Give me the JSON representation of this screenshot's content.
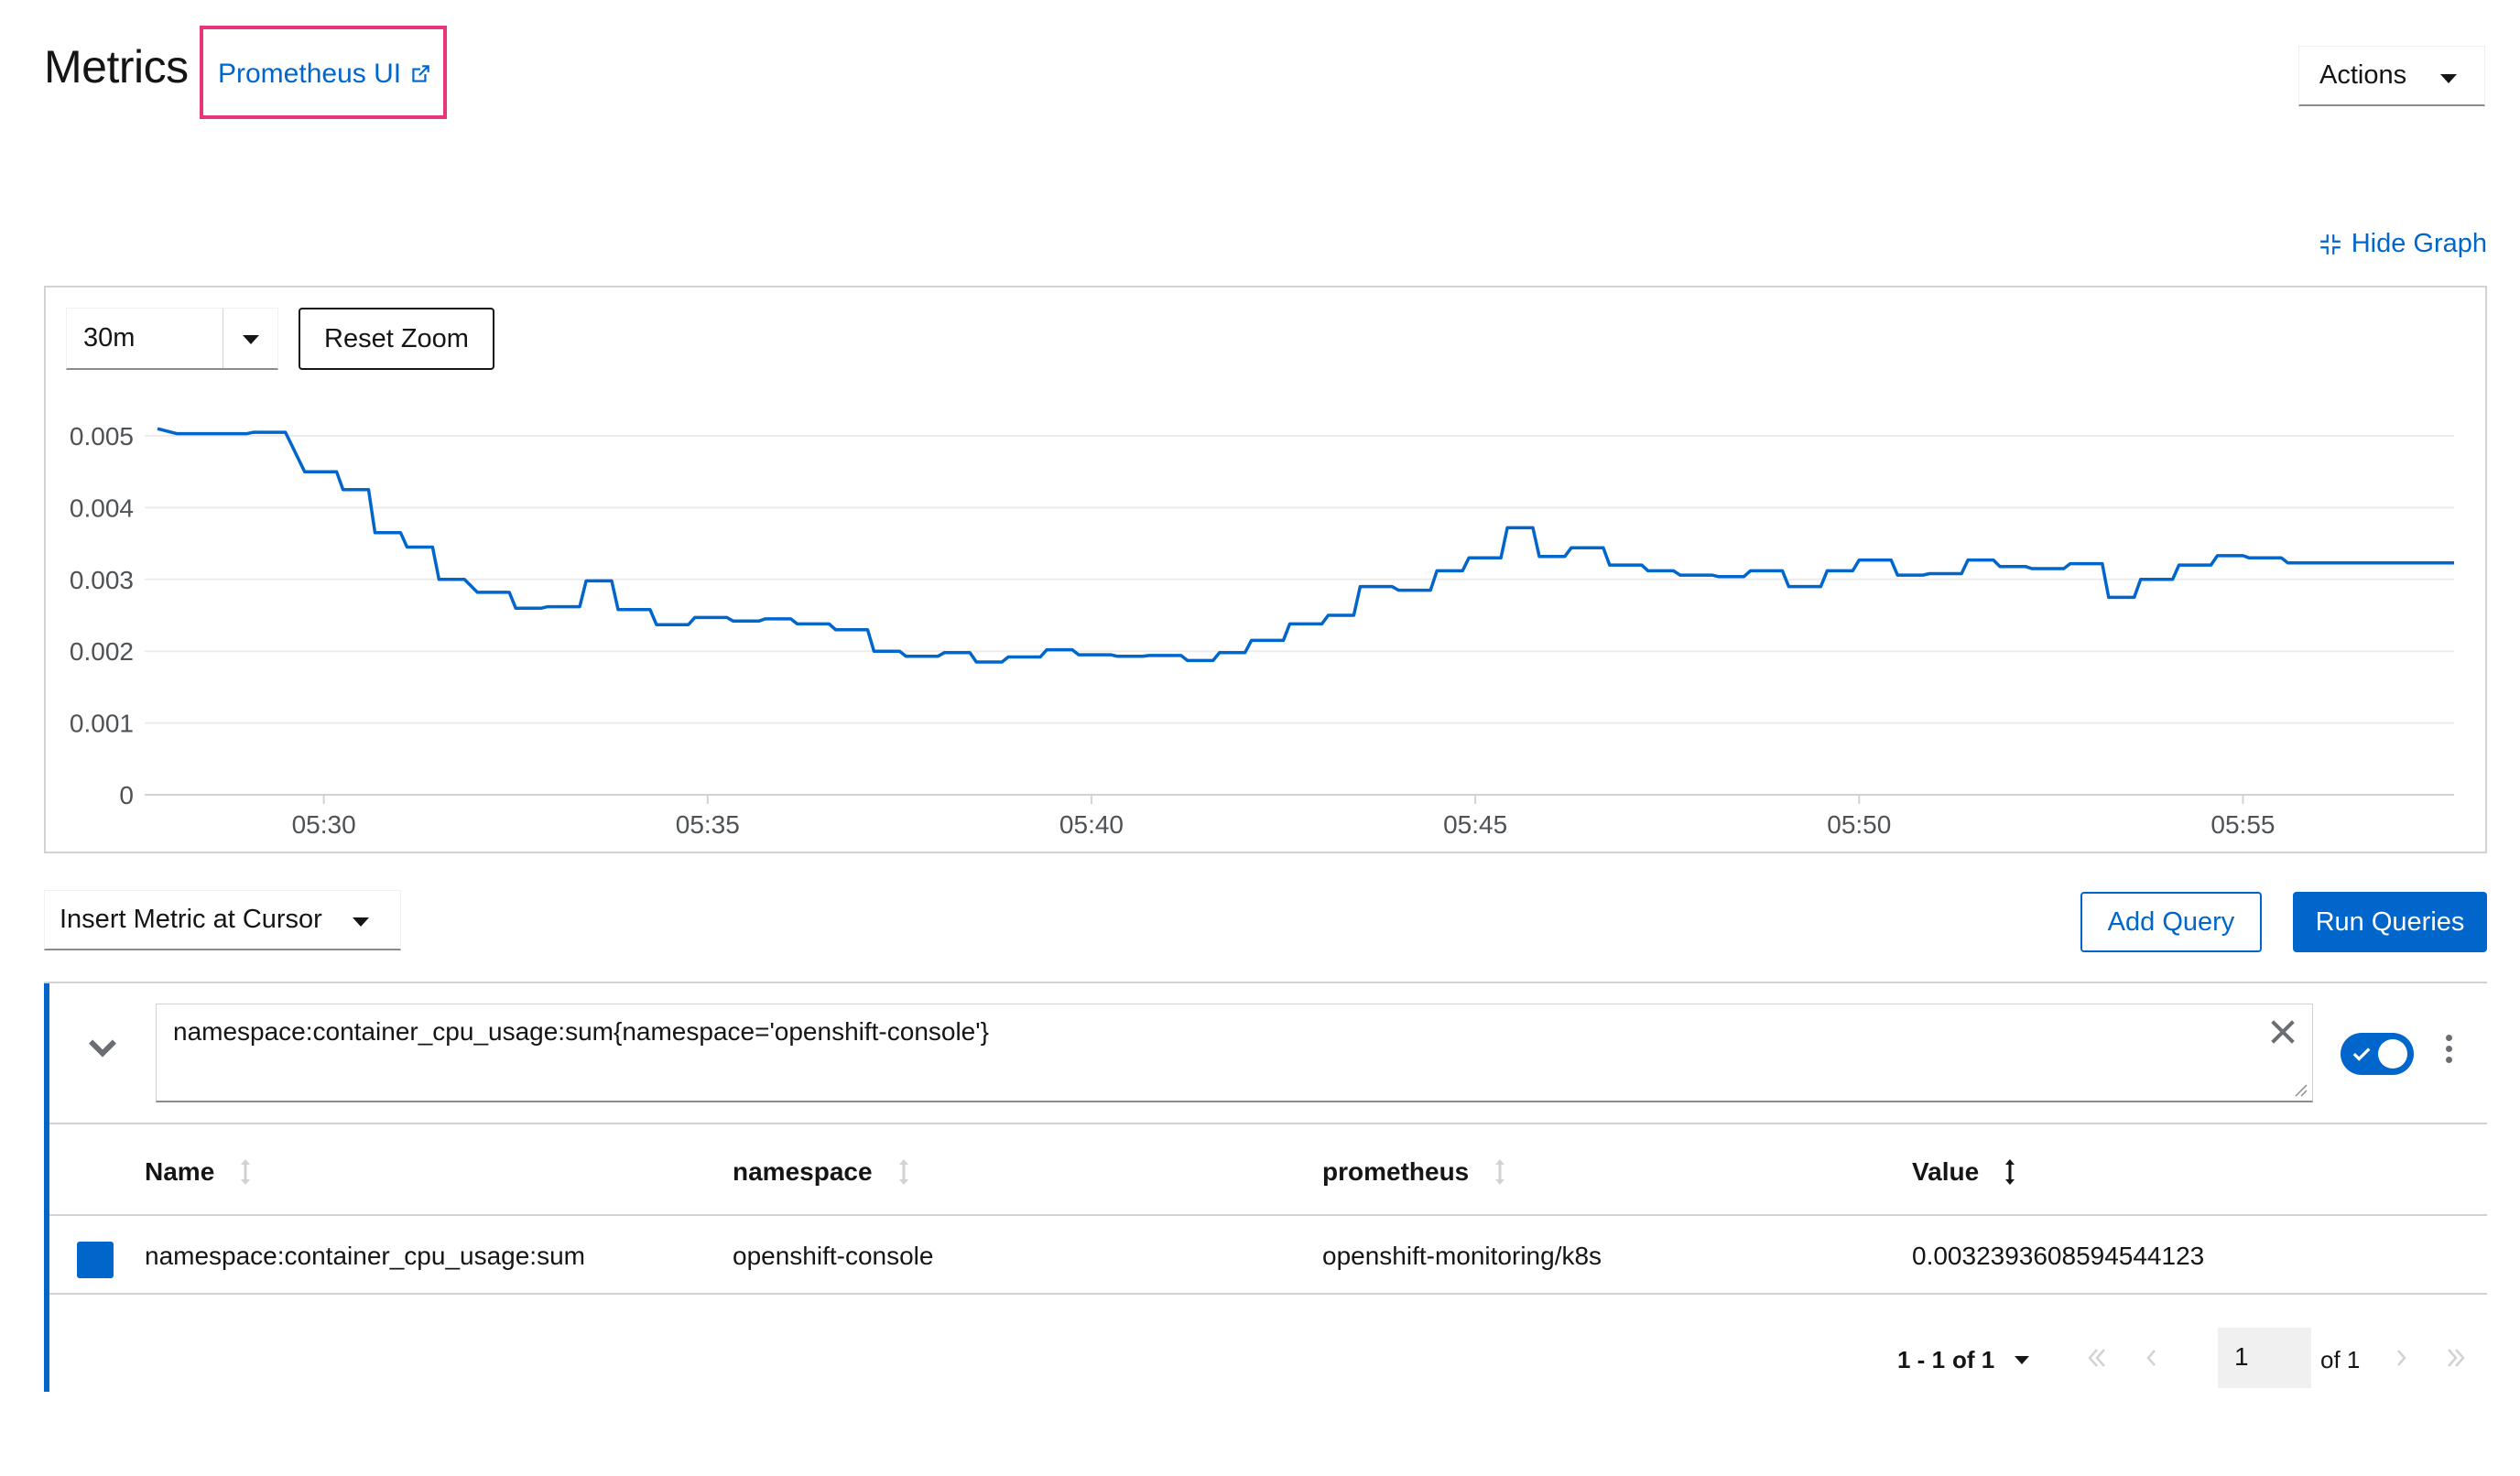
{
  "header": {
    "title": "Metrics",
    "prometheus_link": "Prometheus UI",
    "actions_label": "Actions"
  },
  "graph": {
    "hide_graph_label": "Hide Graph",
    "time_range": "30m",
    "reset_zoom_label": "Reset Zoom",
    "line_color": "#0066cc"
  },
  "chart_data": {
    "type": "line",
    "title": "",
    "xlabel": "",
    "ylabel": "",
    "x_ticks": [
      "05:30",
      "05:35",
      "05:40",
      "05:45",
      "05:50",
      "05:55"
    ],
    "y_ticks": [
      "0.005",
      "0.004",
      "0.003",
      "0.002",
      "0.001",
      "0"
    ],
    "ylim": [
      0,
      0.005
    ],
    "xlim": [
      "05:27:50",
      "05:57:45"
    ],
    "grid": true,
    "series": [
      {
        "name": "namespace:container_cpu_usage:sum",
        "x": [
          "05:27:50",
          "05:28:05",
          "05:29:00",
          "05:29:05",
          "05:29:30",
          "05:29:45",
          "05:30:10",
          "05:30:15",
          "05:30:35",
          "05:30:40",
          "05:31:00",
          "05:31:05",
          "05:31:25",
          "05:31:30",
          "05:31:50",
          "05:32:00",
          "05:32:25",
          "05:32:30",
          "05:32:50",
          "05:32:55",
          "05:33:20",
          "05:33:25",
          "05:33:45",
          "05:33:50",
          "05:34:15",
          "05:34:20",
          "05:34:45",
          "05:34:50",
          "05:35:15",
          "05:35:20",
          "05:35:40",
          "05:35:45",
          "05:36:05",
          "05:36:10",
          "05:36:35",
          "05:36:40",
          "05:37:05",
          "05:37:10",
          "05:37:30",
          "05:37:35",
          "05:38:00",
          "05:38:05",
          "05:38:25",
          "05:38:30",
          "05:38:50",
          "05:38:55",
          "05:39:20",
          "05:39:25",
          "05:39:45",
          "05:39:50",
          "05:40:15",
          "05:40:20",
          "05:40:40",
          "05:40:45",
          "05:41:10",
          "05:41:15",
          "05:41:35",
          "05:41:40",
          "05:42:00",
          "05:42:05",
          "05:42:30",
          "05:42:35",
          "05:43:00",
          "05:43:05",
          "05:43:25",
          "05:43:30",
          "05:43:55",
          "05:44:00",
          "05:44:25",
          "05:44:30",
          "05:44:50",
          "05:44:55",
          "05:45:20",
          "05:45:25",
          "05:45:45",
          "05:45:50",
          "05:46:10",
          "05:46:15",
          "05:46:40",
          "05:46:45",
          "05:47:10",
          "05:47:15",
          "05:47:35",
          "05:47:40",
          "05:48:05",
          "05:48:10",
          "05:48:30",
          "05:48:35",
          "05:49:00",
          "05:49:05",
          "05:49:30",
          "05:49:35",
          "05:49:55",
          "05:50:00",
          "05:50:25",
          "05:50:30",
          "05:50:50",
          "05:50:55",
          "05:51:20",
          "05:51:25",
          "05:51:45",
          "05:51:50",
          "05:52:10",
          "05:52:15",
          "05:52:40",
          "05:52:45",
          "05:53:10",
          "05:53:15",
          "05:53:35",
          "05:53:40",
          "05:54:05",
          "05:54:10",
          "05:54:35",
          "05:54:40",
          "05:55:00",
          "05:55:05",
          "05:55:30",
          "05:55:35",
          "05:55:55",
          "05:56:00",
          "05:56:25",
          "05:56:30",
          "05:56:55",
          "05:57:00",
          "05:57:45"
        ],
        "y": [
          0.0051,
          0.00503,
          0.00503,
          0.00505,
          0.00505,
          0.0045,
          0.0045,
          0.00425,
          0.00425,
          0.00365,
          0.00365,
          0.00345,
          0.00345,
          0.003,
          0.003,
          0.00282,
          0.00282,
          0.0026,
          0.0026,
          0.00262,
          0.00262,
          0.00298,
          0.00298,
          0.00258,
          0.00258,
          0.00237,
          0.00237,
          0.00247,
          0.00247,
          0.00242,
          0.00242,
          0.00245,
          0.00245,
          0.00238,
          0.00238,
          0.0023,
          0.0023,
          0.002,
          0.002,
          0.00193,
          0.00193,
          0.00198,
          0.00198,
          0.00185,
          0.00185,
          0.00192,
          0.00192,
          0.00202,
          0.00202,
          0.00195,
          0.00195,
          0.00193,
          0.00193,
          0.00194,
          0.00194,
          0.00187,
          0.00187,
          0.00198,
          0.00198,
          0.00215,
          0.00215,
          0.00238,
          0.00238,
          0.0025,
          0.0025,
          0.0029,
          0.0029,
          0.00285,
          0.00285,
          0.00312,
          0.00312,
          0.0033,
          0.0033,
          0.00372,
          0.00372,
          0.00332,
          0.00332,
          0.00344,
          0.00344,
          0.0032,
          0.0032,
          0.00312,
          0.00312,
          0.00306,
          0.00306,
          0.00304,
          0.00304,
          0.00312,
          0.00312,
          0.0029,
          0.0029,
          0.00312,
          0.00312,
          0.00327,
          0.00327,
          0.00306,
          0.00306,
          0.00308,
          0.00308,
          0.00327,
          0.00327,
          0.00318,
          0.00318,
          0.00315,
          0.00315,
          0.00322,
          0.00322,
          0.00275,
          0.00275,
          0.003,
          0.003,
          0.0032,
          0.0032,
          0.00333,
          0.00333,
          0.0033,
          0.0033,
          0.00323,
          0.00323,
          0.00323,
          0.00323,
          0.00323,
          0.00323,
          0.00323,
          0.00323
        ]
      }
    ]
  },
  "toolbar": {
    "insert_metric_label": "Insert Metric at Cursor",
    "add_query_label": "Add Query",
    "run_queries_label": "Run Queries"
  },
  "query": {
    "expression": "namespace:container_cpu_usage:sum{namespace='openshift-console'}",
    "enabled": true,
    "columns": [
      "Name",
      "namespace",
      "prometheus",
      "Value"
    ],
    "rows": [
      {
        "name": "namespace:container_cpu_usage:sum",
        "namespace": "openshift-console",
        "prometheus": "openshift-monitoring/k8s",
        "value": "0.0032393608594544123",
        "color": "#0066cc"
      }
    ]
  },
  "pagination": {
    "range_label": "1 - 1",
    "of_label": "of 1",
    "current_page": "1",
    "of_pages": "of 1"
  }
}
